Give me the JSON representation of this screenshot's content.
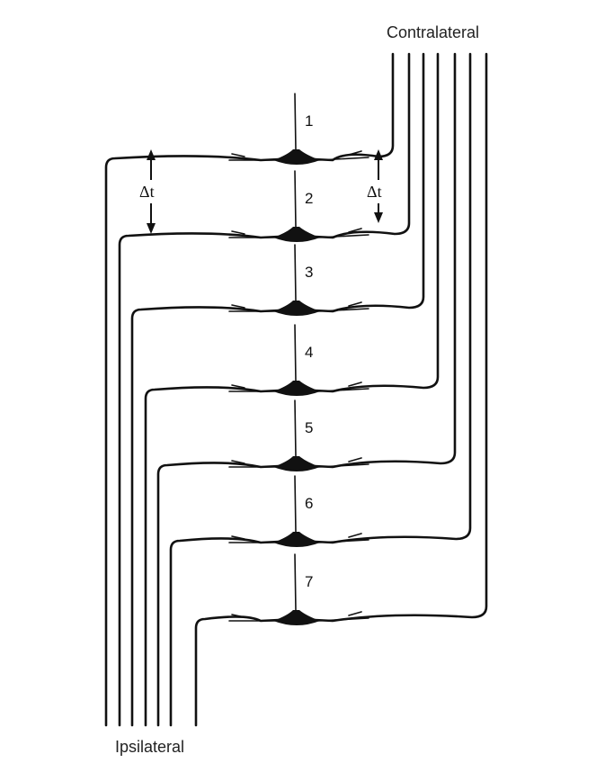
{
  "labels": {
    "contralateral": "Contralateral",
    "ipsilateral": "Ipsilateral",
    "delta_t_left": "Δt",
    "delta_t_right": "Δt"
  },
  "neurons": [
    {
      "number": "1"
    },
    {
      "number": "2"
    },
    {
      "number": "3"
    },
    {
      "number": "4"
    },
    {
      "number": "5"
    },
    {
      "number": "6"
    },
    {
      "number": "7"
    }
  ]
}
